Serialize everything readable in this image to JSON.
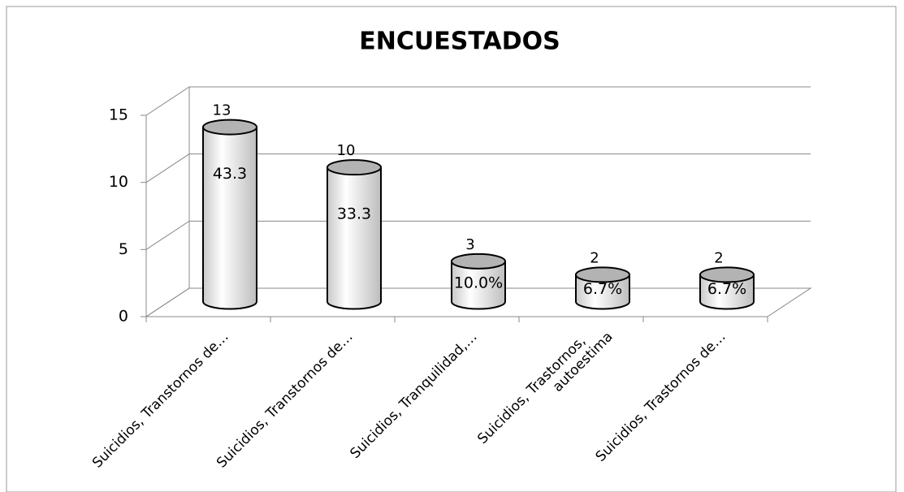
{
  "chart_data": {
    "type": "bar3d-cylinder",
    "title": "ENCUESTADOS",
    "categories": [
      "Suicidios, Transtornos de…",
      "Suicidios, Transtornos de…",
      "Suicidios, Tranquilidad,…",
      "Suicidios, Trastornos, autoestima",
      "Suicidios, Trastornos de…"
    ],
    "values": [
      13,
      10,
      3,
      2,
      2
    ],
    "inner_labels": [
      "43.3",
      "33.3",
      "10.0%",
      "6.7%",
      "6.7%"
    ],
    "color": "#e6e6e6",
    "ylim": [
      0,
      15
    ],
    "yticks": [
      0,
      5,
      10,
      15
    ],
    "grid": true
  }
}
